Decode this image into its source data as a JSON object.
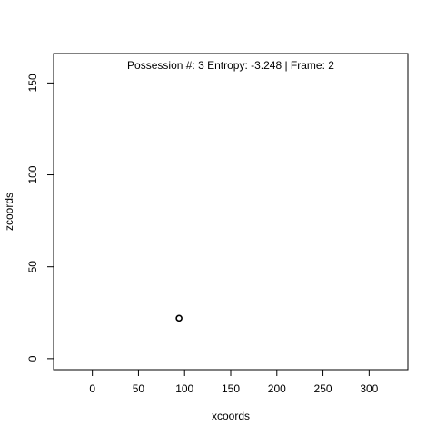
{
  "chart_data": {
    "type": "scatter",
    "title": "",
    "annotation": "Possession #: 3 Entropy: -3.248 | Frame: 2",
    "xlabel": "xcoords",
    "ylabel": "zcoords",
    "xlim": [
      -42,
      342
    ],
    "ylim": [
      -6,
      166
    ],
    "x_ticks": [
      0,
      50,
      100,
      150,
      200,
      250,
      300
    ],
    "y_ticks": [
      0,
      50,
      100,
      150
    ],
    "grid": false,
    "legend": "none",
    "series": [
      {
        "points": [
          {
            "x": 94,
            "y": 22
          }
        ],
        "marker": "open-circle",
        "color": "#000000"
      }
    ]
  }
}
